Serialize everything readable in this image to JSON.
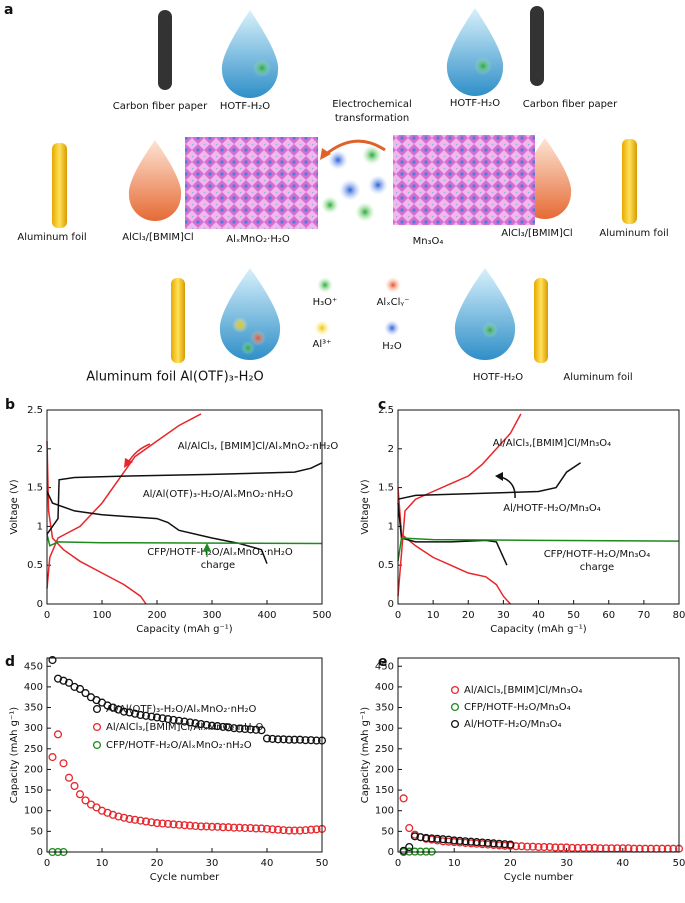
{
  "panel_a": {
    "label": "a",
    "texts": [
      "Carbon fiber paper",
      "HOTF-H₂O",
      "Electrochemical",
      "transformation",
      "HOTF-H₂O",
      "Carbon fiber paper",
      "Aluminum foil",
      "AlCl₃/[BMIM]Cl",
      "AlₓMnO₂·H₂O",
      "Mn₃O₄",
      "AlCl₃/[BMIM]Cl",
      "Aluminum foil",
      "H₃O⁺",
      "AlₓClᵧ⁻",
      "Al³⁺",
      "H₂O",
      "Aluminum foil Al(OTF)₃-H₂O",
      "HOTF-H₂O",
      "Aluminum foil"
    ]
  },
  "chart_data": [
    {
      "type": "line",
      "panel": "b",
      "xlabel": "Capacity (mAh g⁻¹)",
      "ylabel": "Voltage (V)",
      "xlim": [
        0,
        500
      ],
      "ylim": [
        0,
        2.5
      ],
      "xticks": [
        0,
        100,
        200,
        300,
        400,
        500
      ],
      "yticks": [
        0,
        0.5,
        1,
        1.5,
        2,
        2.5
      ],
      "series": [
        {
          "name": "Al/AlCl₃, [BMIM]Cl/AlₓMnO₂·nH₂O",
          "color": "#e8262b",
          "x": [
            0,
            5,
            20,
            60,
            100,
            130,
            160,
            200,
            240,
            280,
            null,
            0,
            3,
            10,
            30,
            60,
            100,
            140,
            170,
            180
          ],
          "values": [
            0.2,
            0.6,
            0.85,
            1.0,
            1.3,
            1.6,
            1.9,
            2.1,
            2.3,
            2.45,
            null,
            2.1,
            1.2,
            0.85,
            0.7,
            0.55,
            0.4,
            0.25,
            0.1,
            0
          ]
        },
        {
          "name": "Al/Al(OTF)₃-H₂O/AlₓMnO₂·nH₂O",
          "color": "#111111",
          "x": [
            0,
            10,
            50,
            100,
            200,
            220,
            240,
            300,
            350,
            390,
            400,
            null,
            0,
            10,
            20,
            22,
            50,
            150,
            300,
            450,
            480,
            500
          ],
          "values": [
            1.45,
            1.3,
            1.2,
            1.15,
            1.1,
            1.05,
            0.95,
            0.85,
            0.78,
            0.7,
            0.52,
            null,
            0.9,
            1.0,
            1.1,
            1.6,
            1.63,
            1.65,
            1.67,
            1.7,
            1.75,
            1.82
          ]
        },
        {
          "name": "CFP/HOTF-H₂O/AlₓMnO₂·nH₂O",
          "color": "#1e8a1e",
          "x": [
            0,
            5,
            20,
            100,
            500
          ],
          "values": [
            0.9,
            0.75,
            0.8,
            0.79,
            0.78
          ]
        }
      ],
      "annotations": [
        "charge"
      ]
    },
    {
      "type": "line",
      "panel": "c",
      "xlabel": "Capacity (mAh g⁻¹)",
      "ylabel": "Voltage (V)",
      "xlim": [
        0,
        80
      ],
      "ylim": [
        0,
        2.5
      ],
      "xticks": [
        0,
        10,
        20,
        30,
        40,
        50,
        60,
        70,
        80
      ],
      "yticks": [
        0,
        0.5,
        1,
        1.5,
        2,
        2.5
      ],
      "series": [
        {
          "name": "Al/AlCl₃,[BMIM]Cl/Mn₃O₄",
          "color": "#e8262b",
          "x": [
            0,
            2,
            5,
            10,
            15,
            20,
            24,
            28,
            32,
            35,
            null,
            0,
            1,
            5,
            10,
            15,
            20,
            25,
            28,
            30,
            32
          ],
          "values": [
            0.1,
            1.2,
            1.35,
            1.45,
            1.55,
            1.65,
            1.8,
            2.0,
            2.2,
            2.45,
            null,
            1.5,
            0.9,
            0.75,
            0.6,
            0.5,
            0.4,
            0.35,
            0.25,
            0.1,
            0
          ]
        },
        {
          "name": "Al/HOTF-H₂O/Mn₃O₄",
          "color": "#111111",
          "x": [
            0,
            1,
            5,
            15,
            25,
            28,
            30,
            31,
            null,
            0,
            5,
            20,
            40,
            45,
            48,
            52
          ],
          "values": [
            1.3,
            0.85,
            0.8,
            0.8,
            0.82,
            0.8,
            0.6,
            0.5,
            null,
            1.35,
            1.4,
            1.42,
            1.45,
            1.5,
            1.7,
            1.82
          ]
        },
        {
          "name": "CFP/HOTF-H₂O/Mn₃O₄",
          "color": "#1e8a1e",
          "x": [
            0,
            1,
            10,
            40,
            80
          ],
          "values": [
            0.55,
            0.85,
            0.83,
            0.82,
            0.81
          ]
        }
      ],
      "annotations": [
        "charge"
      ]
    },
    {
      "type": "scatter",
      "panel": "d",
      "xlabel": "Cycle number",
      "ylabel": "Capacity (mAh g⁻¹)",
      "xlim": [
        0,
        50
      ],
      "ylim": [
        0,
        470
      ],
      "xticks": [
        0,
        10,
        20,
        30,
        40,
        50
      ],
      "yticks": [
        0,
        50,
        100,
        150,
        200,
        250,
        300,
        350,
        400,
        450
      ],
      "series": [
        {
          "name": "Al/Al(OTF)₃-H₂O/AlₓMnO₂·nH₂O",
          "color": "#111111",
          "x": [
            1,
            2,
            3,
            4,
            5,
            6,
            7,
            8,
            9,
            10,
            11,
            12,
            13,
            14,
            15,
            16,
            17,
            18,
            19,
            20,
            21,
            22,
            23,
            24,
            25,
            26,
            27,
            28,
            29,
            30,
            31,
            32,
            33,
            34,
            35,
            36,
            37,
            38,
            39,
            40,
            41,
            42,
            43,
            44,
            45,
            46,
            47,
            48,
            49,
            50
          ],
          "values": [
            465,
            420,
            415,
            410,
            400,
            395,
            385,
            375,
            368,
            362,
            355,
            350,
            345,
            340,
            338,
            335,
            332,
            330,
            328,
            326,
            324,
            322,
            320,
            318,
            316,
            314,
            312,
            310,
            308,
            306,
            305,
            303,
            302,
            300,
            299,
            298,
            297,
            296,
            295,
            275,
            274,
            273,
            273,
            272,
            272,
            272,
            271,
            271,
            270,
            270
          ]
        },
        {
          "name": "Al/AlCl₃,[BMIM]Cl/AlₓMnO₂·nH₂O",
          "color": "#e8262b",
          "x": [
            1,
            2,
            3,
            4,
            5,
            6,
            7,
            8,
            9,
            10,
            11,
            12,
            13,
            14,
            15,
            16,
            17,
            18,
            19,
            20,
            21,
            22,
            23,
            24,
            25,
            26,
            27,
            28,
            29,
            30,
            31,
            32,
            33,
            34,
            35,
            36,
            37,
            38,
            39,
            40,
            41,
            42,
            43,
            44,
            45,
            46,
            47,
            48,
            49,
            50
          ],
          "values": [
            230,
            285,
            215,
            180,
            160,
            140,
            125,
            115,
            108,
            100,
            95,
            90,
            86,
            83,
            80,
            78,
            76,
            74,
            72,
            70,
            69,
            68,
            67,
            66,
            65,
            64,
            63,
            62,
            62,
            61,
            61,
            60,
            60,
            59,
            59,
            58,
            58,
            57,
            57,
            56,
            55,
            54,
            53,
            52,
            52,
            52,
            53,
            54,
            55,
            56
          ]
        },
        {
          "name": "CFP/HOTF-H₂O/AlₓMnO₂·nH₂O",
          "color": "#1e8a1e",
          "x": [
            1,
            2,
            3
          ],
          "values": [
            0,
            0,
            0
          ]
        }
      ]
    },
    {
      "type": "scatter",
      "panel": "e",
      "xlabel": "Cycle number",
      "ylabel": "Capacity (mAh g⁻¹)",
      "xlim": [
        0,
        50
      ],
      "ylim": [
        0,
        470
      ],
      "xticks": [
        0,
        10,
        20,
        30,
        40,
        50
      ],
      "yticks": [
        0,
        50,
        100,
        150,
        200,
        250,
        300,
        350,
        400,
        450
      ],
      "series": [
        {
          "name": "Al/AlCl₃,[BMIM]Cl/Mn₃O₄",
          "color": "#e8262b",
          "x": [
            1,
            2,
            3,
            4,
            5,
            6,
            7,
            8,
            9,
            10,
            11,
            12,
            13,
            14,
            15,
            16,
            17,
            18,
            19,
            20,
            21,
            22,
            23,
            24,
            25,
            26,
            27,
            28,
            29,
            30,
            31,
            32,
            33,
            34,
            35,
            36,
            37,
            38,
            39,
            40,
            41,
            42,
            43,
            44,
            45,
            46,
            47,
            48,
            49,
            50
          ],
          "values": [
            130,
            58,
            42,
            36,
            32,
            30,
            28,
            26,
            25,
            24,
            23,
            22,
            21,
            20,
            19,
            18,
            17,
            16,
            15,
            15,
            14,
            14,
            13,
            13,
            12,
            12,
            12,
            11,
            11,
            11,
            10,
            10,
            10,
            10,
            10,
            9,
            9,
            9,
            9,
            9,
            9,
            8,
            8,
            8,
            8,
            8,
            8,
            8,
            8,
            8
          ]
        },
        {
          "name": "CFP/HOTF-H₂O/Mn₃O₄",
          "color": "#1e8a1e",
          "x": [
            1,
            2,
            3,
            4,
            5,
            6
          ],
          "values": [
            0,
            1,
            1,
            1,
            1,
            1
          ]
        },
        {
          "name": "Al/HOTF-H₂O/Mn₃O₄",
          "color": "#111111",
          "x": [
            1,
            2,
            3,
            4,
            5,
            6,
            7,
            8,
            9,
            10,
            11,
            12,
            13,
            14,
            15,
            16,
            17,
            18,
            19,
            20
          ],
          "values": [
            3,
            12,
            38,
            36,
            34,
            33,
            32,
            31,
            30,
            28,
            27,
            26,
            25,
            24,
            23,
            22,
            21,
            20,
            19,
            18
          ]
        }
      ]
    }
  ]
}
